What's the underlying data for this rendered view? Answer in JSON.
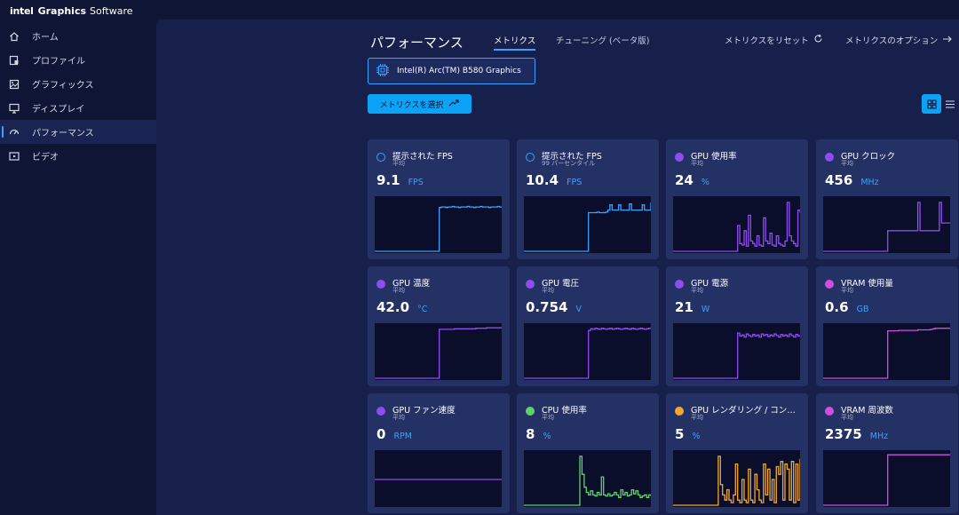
{
  "app": {
    "brand_intel": "intel",
    "brand_graphics": "Graphics",
    "brand_software": "Software"
  },
  "sidebar": {
    "items": [
      {
        "label": "ホーム",
        "icon": "home-icon",
        "active": false
      },
      {
        "label": "プロファイル",
        "icon": "profile-icon",
        "active": false
      },
      {
        "label": "グラフィックス",
        "icon": "graphics-icon",
        "active": false
      },
      {
        "label": "ディスプレイ",
        "icon": "display-icon",
        "active": false
      },
      {
        "label": "パフォーマンス",
        "icon": "performance-icon",
        "active": true
      },
      {
        "label": "ビデオ",
        "icon": "video-icon",
        "active": false
      }
    ]
  },
  "header": {
    "title": "パフォーマンス",
    "tabs": [
      {
        "label": "メトリクス",
        "active": true
      },
      {
        "label": "チューニング (ベータ版)",
        "active": false
      }
    ],
    "reset_label": "メトリクスをリセット",
    "options_label": "メトリクスのオプション"
  },
  "device": {
    "label": "Intel(R) Arc(TM) B580 Graphics"
  },
  "toolbar": {
    "select_label": "メトリクスを選択"
  },
  "colors": {
    "accent": "#0aa3f5",
    "blue": "#3aa2ff",
    "purple": "#8f4cf0",
    "magenta": "#d04fe0",
    "green": "#5ed26b",
    "orange": "#f0a830"
  },
  "metrics": [
    {
      "name": "提示された FPS",
      "sub": "平均",
      "value": "9.1",
      "unit": "FPS",
      "color": "#3aa2ff",
      "dot": "ring",
      "trace": [
        0,
        0,
        0,
        0,
        0,
        0,
        0,
        0,
        0,
        0,
        0,
        0,
        0,
        0,
        0,
        0,
        0,
        0,
        0,
        0,
        0,
        0,
        0,
        0,
        0,
        0,
        0,
        0,
        0,
        0,
        0.85,
        0.86,
        0.86,
        0.85,
        0.86,
        0.86,
        0.87,
        0.86,
        0.86,
        0.85,
        0.86,
        0.86,
        0.86,
        0.87,
        0.86,
        0.86,
        0.85,
        0.86,
        0.86,
        0.87,
        0.86,
        0.86,
        0.86,
        0.85,
        0.86,
        0.86,
        0.86,
        0.87,
        0.86,
        0.86
      ]
    },
    {
      "name": "提示された FPS",
      "sub": "99 パーセンタイル",
      "value": "10.4",
      "unit": "FPS",
      "color": "#3aa2ff",
      "dot": "ring",
      "trace": [
        0,
        0,
        0,
        0,
        0,
        0,
        0,
        0,
        0,
        0,
        0,
        0,
        0,
        0,
        0,
        0,
        0,
        0,
        0,
        0,
        0,
        0,
        0,
        0,
        0,
        0,
        0,
        0,
        0,
        0,
        0.75,
        0.75,
        0.75,
        0.75,
        0.76,
        0.75,
        0.75,
        0.75,
        0.76,
        0.8,
        0.9,
        0.8,
        0.8,
        0.8,
        0.9,
        0.8,
        0.8,
        0.8,
        0.8,
        0.92,
        0.8,
        0.8,
        0.8,
        0.8,
        0.8,
        0.9,
        0.8,
        0.8,
        0.8,
        0.95
      ]
    },
    {
      "name": "GPU 使用率",
      "sub": "平均",
      "value": "24",
      "unit": "%",
      "color": "#8f4cf0",
      "dot": "filled",
      "trace": [
        0,
        0,
        0,
        0,
        0,
        0,
        0,
        0,
        0,
        0,
        0,
        0,
        0,
        0,
        0,
        0,
        0,
        0,
        0,
        0,
        0,
        0,
        0,
        0,
        0,
        0,
        0,
        0,
        0,
        0,
        0.5,
        0.15,
        0.12,
        0.4,
        0.1,
        0.7,
        0.2,
        0.15,
        0.1,
        0.3,
        0.12,
        0.1,
        0.65,
        0.2,
        0.15,
        0.35,
        0.12,
        0.1,
        0.3,
        0.15,
        0.12,
        0.1,
        0.2,
        0.95,
        0.3,
        0.2,
        0.15,
        0.1,
        0.8,
        0.75
      ]
    },
    {
      "name": "GPU クロック",
      "sub": "平均",
      "value": "456",
      "unit": "MHz",
      "color": "#8f4cf0",
      "dot": "filled",
      "trace": [
        0,
        0,
        0,
        0,
        0,
        0,
        0,
        0,
        0,
        0,
        0,
        0,
        0,
        0,
        0,
        0,
        0,
        0,
        0,
        0,
        0,
        0,
        0,
        0,
        0,
        0,
        0,
        0,
        0,
        0,
        0.4,
        0.4,
        0.4,
        0.4,
        0.4,
        0.4,
        0.4,
        0.4,
        0.4,
        0.4,
        0.4,
        0.4,
        0.4,
        0.4,
        0.95,
        0.4,
        0.4,
        0.4,
        0.4,
        0.4,
        0.4,
        0.4,
        0.4,
        0.4,
        0.95,
        0.55,
        0.55,
        0.55,
        0.55,
        0.55
      ]
    },
    {
      "name": "GPU 温度",
      "sub": "平均",
      "value": "42.0",
      "unit": "°C",
      "color": "#8f4cf0",
      "dot": "filled",
      "trace": [
        0,
        0,
        0,
        0,
        0,
        0,
        0,
        0,
        0,
        0,
        0,
        0,
        0,
        0,
        0,
        0,
        0,
        0,
        0,
        0,
        0,
        0,
        0,
        0,
        0,
        0,
        0,
        0,
        0,
        0,
        0.95,
        0.95,
        0.95,
        0.95,
        0.95,
        0.95,
        0.95,
        0.96,
        0.96,
        0.96,
        0.96,
        0.96,
        0.96,
        0.96,
        0.96,
        0.96,
        0.96,
        0.97,
        0.97,
        0.97,
        0.97,
        0.97,
        0.98,
        0.98,
        0.98,
        0.98,
        0.98,
        0.98,
        0.98,
        0.98
      ]
    },
    {
      "name": "GPU 電圧",
      "sub": "平均",
      "value": "0.754",
      "unit": "V",
      "color": "#8f4cf0",
      "dot": "filled",
      "trace": [
        0,
        0,
        0,
        0,
        0,
        0,
        0,
        0,
        0,
        0,
        0,
        0,
        0,
        0,
        0,
        0,
        0,
        0,
        0,
        0,
        0,
        0,
        0,
        0,
        0,
        0,
        0,
        0,
        0,
        0,
        0.93,
        0.96,
        0.95,
        0.97,
        0.96,
        0.95,
        0.97,
        0.96,
        0.95,
        0.96,
        0.97,
        0.95,
        0.96,
        0.97,
        0.96,
        0.95,
        0.96,
        0.97,
        0.96,
        0.95,
        0.97,
        0.96,
        0.95,
        0.96,
        0.97,
        0.96,
        0.95,
        0.96,
        0.97,
        0.96
      ]
    },
    {
      "name": "GPU 電源",
      "sub": "平均",
      "value": "21",
      "unit": "W",
      "color": "#8f4cf0",
      "dot": "filled",
      "trace": [
        0,
        0,
        0,
        0,
        0,
        0,
        0,
        0,
        0,
        0,
        0,
        0,
        0,
        0,
        0,
        0,
        0,
        0,
        0,
        0,
        0,
        0,
        0,
        0,
        0,
        0,
        0,
        0,
        0,
        0,
        0.88,
        0.82,
        0.84,
        0.8,
        0.86,
        0.83,
        0.81,
        0.85,
        0.82,
        0.84,
        0.8,
        0.86,
        0.83,
        0.85,
        0.81,
        0.84,
        0.82,
        0.86,
        0.83,
        0.8,
        0.85,
        0.82,
        0.84,
        0.81,
        0.86,
        0.83,
        0.8,
        0.85,
        0.82,
        0.84
      ]
    },
    {
      "name": "VRAM 使用量",
      "sub": "平均",
      "value": "0.6",
      "unit": "GB",
      "color": "#d04fe0",
      "dot": "filled",
      "trace": [
        0,
        0,
        0,
        0,
        0,
        0,
        0,
        0,
        0,
        0,
        0,
        0,
        0,
        0,
        0,
        0,
        0,
        0,
        0,
        0,
        0,
        0,
        0,
        0,
        0,
        0,
        0,
        0,
        0,
        0,
        0.92,
        0.92,
        0.92,
        0.92,
        0.92,
        0.93,
        0.93,
        0.93,
        0.93,
        0.93,
        0.93,
        0.93,
        0.93,
        0.93,
        0.94,
        0.94,
        0.94,
        0.94,
        0.94,
        0.94,
        0.95,
        0.96,
        0.97,
        0.97,
        0.97,
        0.97,
        0.97,
        0.97,
        0.97,
        0.97
      ]
    },
    {
      "name": "GPU ファン速度",
      "sub": "平均",
      "value": "0",
      "unit": "RPM",
      "color": "#8f4cf0",
      "dot": "filled",
      "trace": [
        0.5,
        0.5,
        0.5,
        0.5,
        0.5,
        0.5,
        0.5,
        0.5,
        0.5,
        0.5,
        0.5,
        0.5,
        0.5,
        0.5,
        0.5,
        0.5,
        0.5,
        0.5,
        0.5,
        0.5,
        0.5,
        0.5,
        0.5,
        0.5,
        0.5,
        0.5,
        0.5,
        0.5,
        0.5,
        0.5,
        0.5,
        0.5,
        0.5,
        0.5,
        0.5,
        0.5,
        0.5,
        0.5,
        0.5,
        0.5,
        0.5,
        0.5,
        0.5,
        0.5,
        0.5,
        0.5,
        0.5,
        0.5,
        0.5,
        0.5,
        0.5,
        0.5,
        0.5,
        0.5,
        0.5,
        0.5,
        0.5,
        0.5,
        0.5,
        0.5
      ]
    },
    {
      "name": "CPU 使用率",
      "sub": "平均",
      "value": "8",
      "unit": "%",
      "color": "#5ed26b",
      "dot": "filled",
      "trace": [
        0,
        0,
        0,
        0,
        0,
        0,
        0,
        0,
        0,
        0,
        0,
        0,
        0,
        0,
        0,
        0,
        0,
        0,
        0,
        0,
        0,
        0,
        0,
        0,
        0,
        0,
        0.95,
        0.6,
        0.35,
        0.25,
        0.2,
        0.28,
        0.2,
        0.18,
        0.25,
        0.2,
        0.55,
        0.2,
        0.18,
        0.22,
        0.18,
        0.2,
        0.25,
        0.2,
        0.15,
        0.3,
        0.2,
        0.25,
        0.18,
        0.2,
        0.3,
        0.22,
        0.28,
        0.2,
        0.15,
        0.18,
        0.2,
        0.15,
        0.2,
        0.18
      ]
    },
    {
      "name": "GPU レンダリング / コンピュート",
      "sub": "平均",
      "value": "5",
      "unit": "%",
      "color": "#f0a830",
      "dot": "filled",
      "trace": [
        0,
        0,
        0,
        0,
        0,
        0,
        0,
        0,
        0,
        0,
        0,
        0,
        0,
        0,
        0,
        0,
        0,
        0,
        0,
        0,
        0,
        0.95,
        0.4,
        0.2,
        0.1,
        0.3,
        0.1,
        0.05,
        0.2,
        0.8,
        0.1,
        0.05,
        0.5,
        0.1,
        0.05,
        0.7,
        0.1,
        0.05,
        0.6,
        0.3,
        0.1,
        0.05,
        0.8,
        0.2,
        0.7,
        0.1,
        0.5,
        0.05,
        0.75,
        0.6,
        0.85,
        0.1,
        0.8,
        0.7,
        0.1,
        0.85,
        0.05,
        0.8,
        0.1,
        0.9
      ]
    },
    {
      "name": "VRAM 周波数",
      "sub": "平均",
      "value": "2375",
      "unit": "MHz",
      "color": "#d04fe0",
      "dot": "filled",
      "trace": [
        0,
        0,
        0,
        0,
        0,
        0,
        0,
        0,
        0,
        0,
        0,
        0,
        0,
        0,
        0,
        0,
        0,
        0,
        0,
        0,
        0,
        0,
        0,
        0,
        0,
        0,
        0,
        0,
        0,
        0,
        0.98,
        0.98,
        0.98,
        0.98,
        0.98,
        0.98,
        0.98,
        0.98,
        0.98,
        0.98,
        0.98,
        0.98,
        0.98,
        0.98,
        0.98,
        0.98,
        0.98,
        0.98,
        0.98,
        0.98,
        0.98,
        0.98,
        0.98,
        0.98,
        0.98,
        0.98,
        0.98,
        0.98,
        0.98,
        0.98
      ]
    }
  ]
}
